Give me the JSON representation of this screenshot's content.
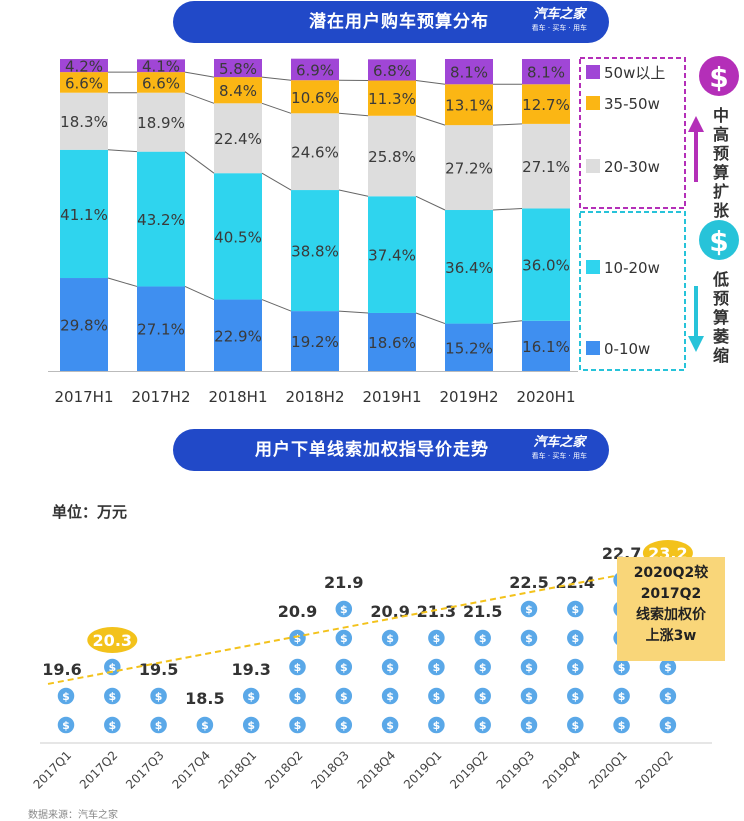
{
  "top_banner": {
    "title": "潜在用户购车预算分布",
    "logo_main": "汽车之家",
    "logo_sub": "看车 · 买车 · 用车"
  },
  "bottom_banner": {
    "title": "用户下单线索加权指导价走势",
    "logo_main": "汽车之家",
    "logo_sub": "看车 · 买车 · 用车"
  },
  "annotations": {
    "high_label": "中高预算扩张",
    "low_label": "低预算萎缩",
    "dollar_symbol": "$",
    "unit_label": "单位：万元",
    "callout_lines": [
      "2020Q2较",
      "2017Q2",
      "线索加权价",
      "上涨3w"
    ]
  },
  "colors": {
    "banner": "#2149c8",
    "seg_0_10": "#3f8ff0",
    "seg_10_20": "#2fd4ee",
    "seg_20_30": "#dddddd",
    "seg_35_50": "#fbb614",
    "seg_50_plus": "#a046d6",
    "high_accent": "#b42fb8",
    "low_accent": "#27c3d9",
    "coin": "#5aa8e8",
    "trend": "#f3c21b",
    "callout": "#f9d679"
  },
  "chart_data": [
    {
      "type": "bar",
      "stacked": true,
      "title": "潜在用户购车预算分布",
      "categories": [
        "2017H1",
        "2017H2",
        "2018H1",
        "2018H2",
        "2019H1",
        "2019H2",
        "2020H1"
      ],
      "series": [
        {
          "name": "0-10w",
          "values": [
            29.8,
            27.1,
            22.9,
            19.2,
            18.6,
            15.2,
            16.1
          ]
        },
        {
          "name": "10-20w",
          "values": [
            41.1,
            43.2,
            40.5,
            38.8,
            37.4,
            36.4,
            36.0
          ]
        },
        {
          "name": "20-30w",
          "values": [
            18.3,
            18.9,
            22.4,
            24.6,
            25.8,
            27.2,
            27.1
          ]
        },
        {
          "name": "35-50w",
          "values": [
            6.6,
            6.6,
            8.4,
            10.6,
            11.3,
            13.1,
            12.7
          ]
        },
        {
          "name": "50w以上",
          "values": [
            4.2,
            4.1,
            5.8,
            6.9,
            6.8,
            8.1,
            8.1
          ]
        }
      ],
      "value_suffix": "%",
      "ylim": [
        0,
        100
      ],
      "legend": "right"
    },
    {
      "type": "bar",
      "title": "用户下单线索加权指导价走势",
      "ylabel": "单位：万元",
      "categories": [
        "2017Q1",
        "2017Q2",
        "2017Q3",
        "2017Q4",
        "2018Q1",
        "2018Q2",
        "2018Q3",
        "2018Q4",
        "2019Q1",
        "2019Q2",
        "2019Q3",
        "2019Q4",
        "2020Q1",
        "2020Q2"
      ],
      "values": [
        19.6,
        20.3,
        19.5,
        18.5,
        19.3,
        20.9,
        21.9,
        20.9,
        21.3,
        21.5,
        22.5,
        22.4,
        22.7,
        23.2
      ],
      "highlighted": [
        "2017Q2",
        "2020Q2"
      ],
      "trend_line": true
    }
  ],
  "footer": {
    "source": "数据来源：汽车之家"
  }
}
